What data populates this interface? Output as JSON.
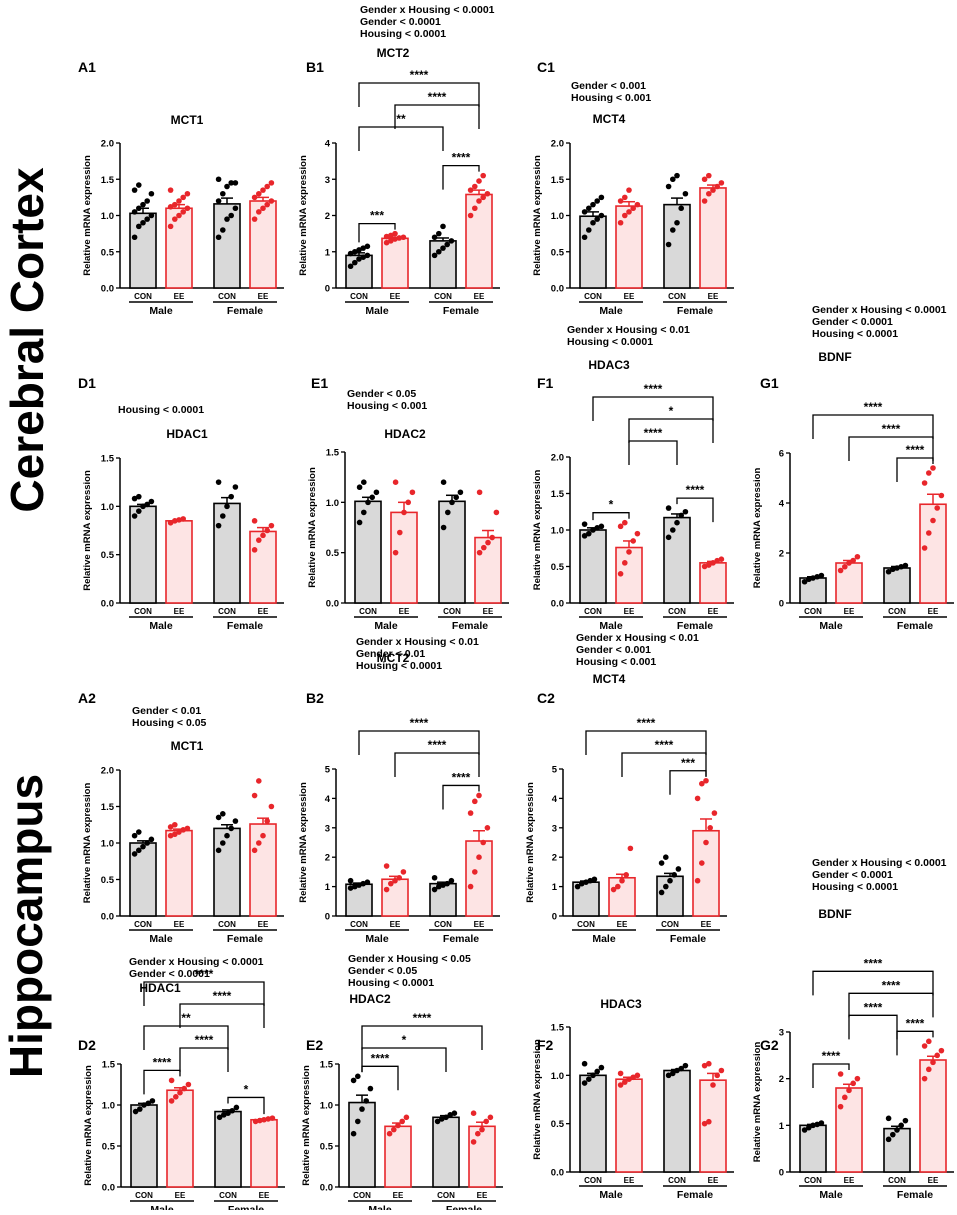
{
  "region_labels": {
    "cortex": "Cerebral Cortex",
    "hippocampus": "Hippocampus"
  },
  "common": {
    "ylabel": "Relative mRNA expression",
    "conditions": [
      "CON",
      "EE"
    ],
    "genders": [
      "Male",
      "Female"
    ]
  },
  "colors": {
    "con_fill": "#d9d9d9",
    "con_edge": "#000000",
    "ee_fill": "#fde4e4",
    "ee_edge": "#e8262b",
    "ee_dot": "#e8262b",
    "con_dot": "#000000"
  },
  "chart_data": [
    {
      "panel": "A1",
      "type": "bar",
      "title": "MCT1",
      "stats": [],
      "ylim": [
        0,
        2.0
      ],
      "ticks": [
        "0.0",
        "0.5",
        "1.0",
        "1.5",
        "2.0"
      ],
      "categories": [
        "Male CON",
        "Male EE",
        "Female CON",
        "Female EE"
      ],
      "values": [
        1.03,
        1.1,
        1.16,
        1.2
      ],
      "sem": [
        0.07,
        0.05,
        0.08,
        0.05
      ],
      "points": [
        [
          0.7,
          0.85,
          0.9,
          0.95,
          1.0,
          1.05,
          1.1,
          1.15,
          1.2,
          1.3,
          1.35,
          1.42
        ],
        [
          0.85,
          0.95,
          1.0,
          1.05,
          1.1,
          1.12,
          1.15,
          1.2,
          1.25,
          1.3,
          1.35
        ],
        [
          0.7,
          0.8,
          0.95,
          1.0,
          1.1,
          1.2,
          1.3,
          1.4,
          1.45,
          1.45,
          1.5
        ],
        [
          0.95,
          1.05,
          1.1,
          1.15,
          1.2,
          1.25,
          1.3,
          1.35,
          1.4,
          1.45
        ]
      ],
      "brackets": []
    },
    {
      "panel": "B1",
      "type": "bar",
      "title": "MCT2",
      "stats": [
        "Gender x Housing < 0.0001",
        "Gender < 0.0001",
        "Housing < 0.0001"
      ],
      "ylim": [
        0,
        4
      ],
      "ticks": [
        "0",
        "1",
        "2",
        "3",
        "4"
      ],
      "categories": [
        "Male CON",
        "Male EE",
        "Female CON",
        "Female EE"
      ],
      "values": [
        0.9,
        1.37,
        1.3,
        2.58
      ],
      "sem": [
        0.07,
        0.03,
        0.08,
        0.12
      ],
      "points": [
        [
          0.6,
          0.7,
          0.8,
          0.85,
          0.9,
          0.95,
          1.0,
          1.05,
          1.1,
          1.15
        ],
        [
          1.25,
          1.3,
          1.35,
          1.38,
          1.4,
          1.42,
          1.45,
          1.5
        ],
        [
          0.9,
          1.0,
          1.1,
          1.2,
          1.3,
          1.4,
          1.5,
          1.7
        ],
        [
          2.0,
          2.2,
          2.4,
          2.5,
          2.6,
          2.7,
          2.8,
          2.95,
          3.1
        ]
      ],
      "brackets": [
        {
          "a": 0,
          "b": 1,
          "level": 0,
          "label": "***"
        },
        {
          "a": 2,
          "b": 3,
          "level": 0,
          "label": "****"
        },
        {
          "a": 0,
          "b": 2,
          "level": 1,
          "label": "**"
        },
        {
          "a": 1,
          "b": 3,
          "level": 2,
          "label": "****"
        },
        {
          "a": 0,
          "b": 3,
          "level": 3,
          "label": "****"
        }
      ]
    },
    {
      "panel": "C1",
      "type": "bar",
      "title": "MCT4",
      "stats": [
        "Gender < 0.001",
        "Housing < 0.001"
      ],
      "ylim": [
        0,
        2.0
      ],
      "ticks": [
        "0.0",
        "0.5",
        "1.0",
        "1.5",
        "2.0"
      ],
      "categories": [
        "Male CON",
        "Male EE",
        "Female CON",
        "Female EE"
      ],
      "values": [
        0.99,
        1.13,
        1.15,
        1.38
      ],
      "sem": [
        0.06,
        0.06,
        0.09,
        0.04
      ],
      "points": [
        [
          0.7,
          0.8,
          0.9,
          0.95,
          1.0,
          1.05,
          1.1,
          1.15,
          1.2,
          1.25
        ],
        [
          0.9,
          1.0,
          1.05,
          1.1,
          1.15,
          1.2,
          1.25,
          1.35
        ],
        [
          0.6,
          0.8,
          0.9,
          1.1,
          1.3,
          1.4,
          1.5,
          1.55
        ],
        [
          1.2,
          1.3,
          1.35,
          1.4,
          1.45,
          1.5,
          1.55
        ]
      ],
      "brackets": []
    },
    {
      "panel": "D1",
      "type": "bar",
      "title": "HDAC1",
      "stats": [
        "Housing < 0.0001"
      ],
      "ylim": [
        0,
        1.5
      ],
      "ticks": [
        "0.0",
        "0.5",
        "1.0",
        "1.5"
      ],
      "categories": [
        "Male CON",
        "Male EE",
        "Female CON",
        "Female EE"
      ],
      "values": [
        1.0,
        0.85,
        1.03,
        0.74
      ],
      "sem": [
        0.02,
        0.01,
        0.06,
        0.04
      ],
      "points": [
        [
          0.9,
          0.95,
          1.0,
          1.02,
          1.05,
          1.08,
          1.1
        ],
        [
          0.83,
          0.85,
          0.86,
          0.87
        ],
        [
          0.8,
          0.9,
          1.0,
          1.1,
          1.2,
          1.25
        ],
        [
          0.55,
          0.65,
          0.7,
          0.75,
          0.8,
          0.85
        ]
      ],
      "brackets": []
    },
    {
      "panel": "E1",
      "type": "bar",
      "title": "HDAC2",
      "stats": [
        "Gender < 0.05",
        "Housing < 0.001"
      ],
      "ylim": [
        0,
        1.5
      ],
      "ticks": [
        "0.0",
        "0.5",
        "1.0",
        "1.5"
      ],
      "categories": [
        "Male CON",
        "Male EE",
        "Female CON",
        "Female EE"
      ],
      "values": [
        1.01,
        0.9,
        1.01,
        0.65
      ],
      "sem": [
        0.04,
        0.1,
        0.06,
        0.07
      ],
      "points": [
        [
          0.8,
          0.9,
          1.0,
          1.05,
          1.1,
          1.15,
          1.2
        ],
        [
          0.5,
          0.7,
          0.9,
          1.0,
          1.1,
          1.2
        ],
        [
          0.75,
          0.9,
          1.0,
          1.05,
          1.1,
          1.2
        ],
        [
          0.5,
          0.55,
          0.6,
          0.65,
          0.9,
          1.1
        ]
      ],
      "brackets": []
    },
    {
      "panel": "F1",
      "type": "bar",
      "title": "HDAC3",
      "stats": [
        "Gender x Housing < 0.01",
        "Housing < 0.0001"
      ],
      "ylim": [
        0,
        2.0
      ],
      "ticks": [
        "0.0",
        "0.5",
        "1.0",
        "1.5",
        "2.0"
      ],
      "categories": [
        "Male CON",
        "Male EE",
        "Female CON",
        "Female EE"
      ],
      "values": [
        1.0,
        0.76,
        1.17,
        0.55
      ],
      "sem": [
        0.03,
        0.09,
        0.05,
        0.02
      ],
      "points": [
        [
          0.92,
          0.95,
          1.0,
          1.03,
          1.05,
          1.08
        ],
        [
          0.4,
          0.55,
          0.7,
          0.85,
          0.95,
          1.05,
          1.1
        ],
        [
          0.9,
          1.0,
          1.1,
          1.2,
          1.25,
          1.3
        ],
        [
          0.5,
          0.52,
          0.55,
          0.58,
          0.6
        ]
      ],
      "brackets": [
        {
          "a": 0,
          "b": 1,
          "level": 0,
          "label": "*"
        },
        {
          "a": 2,
          "b": 3,
          "level": 0,
          "label": "****"
        },
        {
          "a": 1,
          "b": 2,
          "level": 1,
          "label": "****"
        },
        {
          "a": 1,
          "b": 3,
          "level": 2,
          "label": "*"
        },
        {
          "a": 0,
          "b": 3,
          "level": 3,
          "label": "****"
        }
      ]
    },
    {
      "panel": "G1",
      "type": "bar",
      "title": "BDNF",
      "stats": [
        "Gender x Housing < 0.0001",
        "Gender < 0.0001",
        "Housing < 0.0001"
      ],
      "ylim": [
        0,
        6
      ],
      "ticks": [
        "0",
        "2",
        "4",
        "6"
      ],
      "categories": [
        "Male CON",
        "Male EE",
        "Female CON",
        "Female EE"
      ],
      "values": [
        1.0,
        1.6,
        1.4,
        3.95
      ],
      "sem": [
        0.05,
        0.1,
        0.06,
        0.4
      ],
      "points": [
        [
          0.85,
          0.95,
          1.0,
          1.05,
          1.1
        ],
        [
          1.3,
          1.45,
          1.6,
          1.7,
          1.85
        ],
        [
          1.25,
          1.35,
          1.4,
          1.45,
          1.5
        ],
        [
          2.2,
          2.8,
          3.3,
          3.8,
          4.3,
          4.8,
          5.2,
          5.4
        ]
      ],
      "brackets": [
        {
          "a": 2,
          "b": 3,
          "level": 0,
          "label": "****"
        },
        {
          "a": 1,
          "b": 3,
          "level": 1,
          "label": "****"
        },
        {
          "a": 0,
          "b": 3,
          "level": 2,
          "label": "****"
        }
      ]
    },
    {
      "panel": "A2",
      "type": "bar",
      "title": "MCT1",
      "stats": [
        "Gender < 0.01",
        "Housing < 0.05"
      ],
      "ylim": [
        0,
        2.0
      ],
      "ticks": [
        "0.0",
        "0.5",
        "1.0",
        "1.5",
        "2.0"
      ],
      "categories": [
        "Male CON",
        "Male EE",
        "Female CON",
        "Female EE"
      ],
      "values": [
        1.0,
        1.17,
        1.2,
        1.26
      ],
      "sem": [
        0.03,
        0.02,
        0.05,
        0.08
      ],
      "points": [
        [
          0.85,
          0.9,
          0.95,
          1.0,
          1.05,
          1.1,
          1.15
        ],
        [
          1.1,
          1.12,
          1.15,
          1.18,
          1.2,
          1.22,
          1.25
        ],
        [
          0.9,
          1.0,
          1.1,
          1.2,
          1.3,
          1.35,
          1.4
        ],
        [
          0.9,
          1.0,
          1.1,
          1.3,
          1.5,
          1.65,
          1.85
        ]
      ],
      "brackets": []
    },
    {
      "panel": "B2",
      "type": "bar",
      "title": "MCT2",
      "stats": [
        "Gender x Housing < 0.01",
        "Gender < 0.01",
        "Housing < 0.0001"
      ],
      "ylim": [
        0,
        5
      ],
      "ticks": [
        "0",
        "1",
        "2",
        "3",
        "4",
        "5"
      ],
      "categories": [
        "Male CON",
        "Male EE",
        "Female CON",
        "Female EE"
      ],
      "values": [
        1.08,
        1.25,
        1.1,
        2.55
      ],
      "sem": [
        0.04,
        0.1,
        0.05,
        0.35
      ],
      "points": [
        [
          0.95,
          1.0,
          1.05,
          1.1,
          1.15,
          1.2
        ],
        [
          0.9,
          1.1,
          1.2,
          1.3,
          1.5,
          1.7
        ],
        [
          0.9,
          1.0,
          1.05,
          1.1,
          1.2,
          1.3
        ],
        [
          1.0,
          1.5,
          2.0,
          2.5,
          3.0,
          3.5,
          3.9,
          4.1
        ]
      ],
      "brackets": [
        {
          "a": 2,
          "b": 3,
          "level": 0,
          "label": "****"
        },
        {
          "a": 1,
          "b": 3,
          "level": 1,
          "label": "****"
        },
        {
          "a": 0,
          "b": 3,
          "level": 2,
          "label": "****"
        }
      ]
    },
    {
      "panel": "C2",
      "type": "bar",
      "title": "MCT4",
      "stats": [
        "Gender x Housing < 0.01",
        "Gender < 0.001",
        "Housing < 0.001"
      ],
      "ylim": [
        0,
        5
      ],
      "ticks": [
        "0",
        "1",
        "2",
        "3",
        "4",
        "5"
      ],
      "categories": [
        "Male CON",
        "Male EE",
        "Female CON",
        "Female EE"
      ],
      "values": [
        1.15,
        1.3,
        1.35,
        2.9
      ],
      "sem": [
        0.04,
        0.12,
        0.1,
        0.4
      ],
      "points": [
        [
          1.0,
          1.1,
          1.15,
          1.2,
          1.25
        ],
        [
          0.9,
          1.0,
          1.2,
          1.4,
          2.3
        ],
        [
          0.8,
          1.0,
          1.2,
          1.4,
          1.6,
          1.8,
          2.0
        ],
        [
          1.2,
          1.8,
          2.5,
          3.0,
          3.5,
          4.0,
          4.5,
          4.6
        ]
      ],
      "brackets": [
        {
          "a": 2,
          "b": 3,
          "level": 0,
          "label": "***"
        },
        {
          "a": 1,
          "b": 3,
          "level": 1,
          "label": "****"
        },
        {
          "a": 0,
          "b": 3,
          "level": 2,
          "label": "****"
        }
      ]
    },
    {
      "panel": "D2",
      "type": "bar",
      "title": "HDAC1",
      "stats": [
        "Gender x Housing < 0.0001",
        "Gender < 0.0001"
      ],
      "ylim": [
        0,
        1.5
      ],
      "ticks": [
        "0.0",
        "0.5",
        "1.0",
        "1.5"
      ],
      "categories": [
        "Male CON",
        "Male EE",
        "Female CON",
        "Female EE"
      ],
      "values": [
        1.0,
        1.18,
        0.92,
        0.82
      ],
      "sem": [
        0.02,
        0.03,
        0.02,
        0.01
      ],
      "points": [
        [
          0.92,
          0.95,
          1.0,
          1.02,
          1.05
        ],
        [
          1.05,
          1.1,
          1.15,
          1.2,
          1.25,
          1.3
        ],
        [
          0.85,
          0.88,
          0.9,
          0.93,
          0.97
        ],
        [
          0.8,
          0.81,
          0.82,
          0.83,
          0.84
        ]
      ],
      "brackets": [
        {
          "a": 0,
          "b": 1,
          "level": 0,
          "label": "****"
        },
        {
          "a": 2,
          "b": 3,
          "level": 0,
          "label": "*"
        },
        {
          "a": 1,
          "b": 2,
          "level": 1,
          "label": "****"
        },
        {
          "a": 0,
          "b": 2,
          "level": 2,
          "label": "**"
        },
        {
          "a": 1,
          "b": 3,
          "level": 3,
          "label": "****"
        },
        {
          "a": 0,
          "b": 3,
          "level": 4,
          "label": "****"
        }
      ]
    },
    {
      "panel": "E2",
      "type": "bar",
      "title": "HDAC2",
      "stats": [
        "Gender x Housing < 0.05",
        "Gender < 0.05",
        "Housing < 0.0001"
      ],
      "ylim": [
        0,
        1.5
      ],
      "ticks": [
        "0.0",
        "0.5",
        "1.0",
        "1.5"
      ],
      "categories": [
        "Male CON",
        "Male EE",
        "Female CON",
        "Female EE"
      ],
      "values": [
        1.03,
        0.74,
        0.85,
        0.74
      ],
      "sem": [
        0.09,
        0.04,
        0.02,
        0.05
      ],
      "points": [
        [
          0.65,
          0.8,
          0.95,
          1.05,
          1.2,
          1.3,
          1.35
        ],
        [
          0.65,
          0.7,
          0.75,
          0.8,
          0.85
        ],
        [
          0.8,
          0.83,
          0.85,
          0.88,
          0.9
        ],
        [
          0.55,
          0.65,
          0.7,
          0.8,
          0.85,
          0.9
        ]
      ],
      "brackets": [
        {
          "a": 0,
          "b": 1,
          "level": 0,
          "label": "****"
        },
        {
          "a": 0,
          "b": 2,
          "level": 1,
          "label": "*"
        },
        {
          "a": 0,
          "b": 3,
          "level": 2,
          "label": "****"
        }
      ]
    },
    {
      "panel": "F2",
      "type": "bar",
      "title": "HDAC3",
      "stats": [],
      "ylim": [
        0,
        1.5
      ],
      "ticks": [
        "0.0",
        "0.5",
        "1.0",
        "1.5"
      ],
      "categories": [
        "Male CON",
        "Male EE",
        "Female CON",
        "Female EE"
      ],
      "values": [
        1.0,
        0.96,
        1.05,
        0.95
      ],
      "sem": [
        0.02,
        0.02,
        0.01,
        0.07
      ],
      "points": [
        [
          0.92,
          0.96,
          1.0,
          1.04,
          1.08,
          1.12
        ],
        [
          0.9,
          0.93,
          0.96,
          0.98,
          1.0,
          1.02
        ],
        [
          1.0,
          1.02,
          1.05,
          1.07,
          1.1
        ],
        [
          0.5,
          0.52,
          0.9,
          1.0,
          1.05,
          1.1,
          1.12
        ]
      ],
      "brackets": []
    },
    {
      "panel": "G2",
      "type": "bar",
      "title": "BDNF",
      "stats": [
        "Gender x Housing < 0.0001",
        "Gender < 0.0001",
        "Housing < 0.0001"
      ],
      "ylim": [
        0,
        3
      ],
      "ticks": [
        "0",
        "1",
        "2",
        "3"
      ],
      "categories": [
        "Male CON",
        "Male EE",
        "Female CON",
        "Female EE"
      ],
      "values": [
        1.0,
        1.8,
        0.93,
        2.4
      ],
      "sem": [
        0.02,
        0.08,
        0.05,
        0.08
      ],
      "points": [
        [
          0.9,
          0.95,
          1.0,
          1.02,
          1.05
        ],
        [
          1.4,
          1.6,
          1.75,
          1.9,
          2.0,
          2.1
        ],
        [
          0.7,
          0.8,
          0.9,
          1.0,
          1.1,
          1.15
        ],
        [
          2.0,
          2.2,
          2.35,
          2.5,
          2.6,
          2.7,
          2.8
        ]
      ],
      "brackets": [
        {
          "a": 0,
          "b": 1,
          "level": 0,
          "label": "****"
        },
        {
          "a": 2,
          "b": 3,
          "level": 0,
          "label": "****"
        },
        {
          "a": 1,
          "b": 2,
          "level": 1,
          "label": "****"
        },
        {
          "a": 1,
          "b": 3,
          "level": 2,
          "label": "****"
        },
        {
          "a": 0,
          "b": 3,
          "level": 3,
          "label": "****"
        }
      ]
    }
  ]
}
